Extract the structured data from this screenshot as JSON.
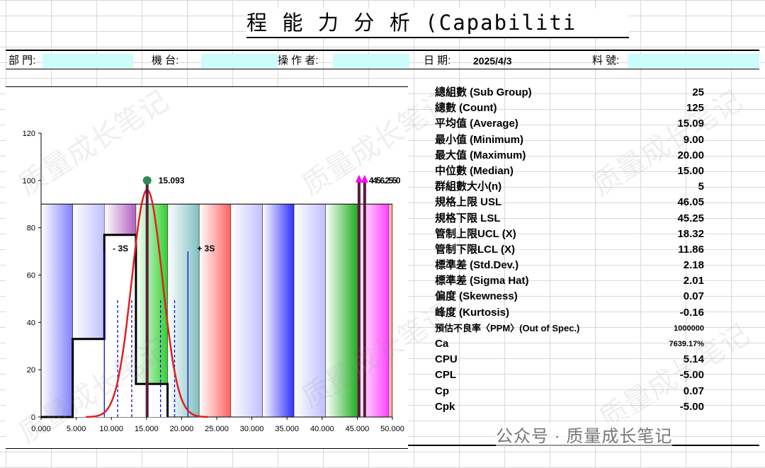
{
  "title": "程 能 力 分 析 (Capabiliti",
  "header": {
    "dept_label": "部 門:",
    "machine_label": "機 台:",
    "operator_label": "操 作 者:",
    "date_label": "日 期:",
    "date_value": "2025/4/3",
    "part_label": "料 號:",
    "field_color": "#ccfcfc"
  },
  "stats": [
    {
      "label": "總組數 (Sub Group)",
      "value": "25"
    },
    {
      "label": "總數 (Count)",
      "value": "125"
    },
    {
      "label": "平均值 (Average)",
      "value": "15.09"
    },
    {
      "label": "最小值 (Minimum)",
      "value": "9.00"
    },
    {
      "label": "最大值 (Maximum)",
      "value": "20.00"
    },
    {
      "label": "中位數 (Median)",
      "value": "15.00"
    },
    {
      "label": "群組數大小(n)",
      "value": "5"
    },
    {
      "label": "規格上限 USL",
      "value": "46.05"
    },
    {
      "label": "規格下限 LSL",
      "value": "45.25"
    },
    {
      "label": "管制上限UCL (X)",
      "value": "18.32"
    },
    {
      "label": "管制下限LCL (X)",
      "value": "11.86"
    },
    {
      "label": "標準差 (Std.Dev.)",
      "value": "2.18"
    },
    {
      "label": "標準差 (Sigma Hat)",
      "value": "2.01"
    },
    {
      "label": "偏度 (Skewness)",
      "value": "0.07"
    },
    {
      "label": "峰度 (Kurtosis)",
      "value": "-0.16"
    },
    {
      "label": "預估不良率〈PPM〉(Out of Spec.)",
      "value": "1000000"
    },
    {
      "label": "Ca",
      "value": "7639.17%"
    },
    {
      "label": "CPU",
      "value": "5.14"
    },
    {
      "label": "CPL",
      "value": "-5.00"
    },
    {
      "label": "Cp",
      "value": "0.07"
    },
    {
      "label": "Cpk",
      "value": "-5.00"
    }
  ],
  "watermark": {
    "text": "质量成长笔记",
    "footer": "公众号 · 质量成长笔记"
  },
  "chart_data": {
    "type": "bar",
    "title": "",
    "xlabel": "",
    "ylabel": "",
    "xlim": [
      0,
      50
    ],
    "ylim": [
      0,
      120
    ],
    "x_ticks": [
      "0.000",
      "5.000",
      "10.000",
      "15.000",
      "20.000",
      "25.000",
      "30.000",
      "35.000",
      "40.000",
      "45.000",
      "50.000"
    ],
    "y_ticks": [
      "0",
      "20",
      "40",
      "60",
      "80",
      "100",
      "120"
    ],
    "grid": false,
    "background_bands": {
      "top": 90,
      "width": 4.5,
      "colors": [
        "#8080ff",
        "#c0c0ff",
        "#b060c0",
        "#30d030",
        "#80c0c0",
        "#ff6060",
        "#c0c0ff",
        "#3030ff",
        "#c0c0ff",
        "#20b020",
        "#ff40ff",
        "#ff6060"
      ]
    },
    "histogram": {
      "step_x": [
        0,
        4.5,
        4.5,
        9.0,
        9.0,
        13.5,
        13.5,
        18.0,
        18.0
      ],
      "step_y": [
        0,
        0,
        33,
        33,
        77,
        77,
        14,
        14,
        0
      ]
    },
    "normal_curve": {
      "mean": 15.093,
      "sigma": 2.18,
      "peak": 96,
      "color": "#e02020"
    },
    "mean_marker": {
      "x": 15.093,
      "y": 100,
      "label": "15.093",
      "color": "#2e8b57"
    },
    "sigma_labels": [
      {
        "label": "- 3S",
        "x": 10.2,
        "y": 70
      },
      {
        "label": "+ 3S",
        "x": 22.2,
        "y": 70
      }
    ],
    "sigma_lines": [
      {
        "x": 9.0,
        "top": 70,
        "style": "solid"
      },
      {
        "x": 20.9,
        "top": 70,
        "style": "solid"
      },
      {
        "x": 10.9,
        "top": 50,
        "style": "dashed"
      },
      {
        "x": 12.9,
        "top": 50,
        "style": "dashed"
      },
      {
        "x": 17.0,
        "top": 50,
        "style": "dashed"
      },
      {
        "x": 19.0,
        "top": 50,
        "style": "dashed"
      }
    ],
    "spec_lines": [
      {
        "x": 45.25,
        "label": "45.25",
        "color": "#5a1a3a"
      },
      {
        "x": 46.05,
        "label": "46.05",
        "color": "#5a1a3a"
      }
    ],
    "spec_marker_color": "#ff00ff",
    "spec_overlap_label": "4456.2550"
  }
}
